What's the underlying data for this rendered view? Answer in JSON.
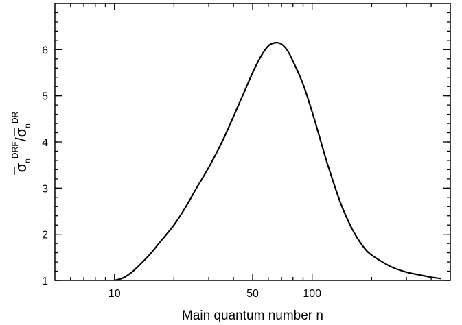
{
  "chart_data": {
    "type": "line",
    "xlabel": "Main quantum number n",
    "ylabel": {
      "sigma": "σ",
      "subscript": "n",
      "sup_numerator": "DRF",
      "slash": "/",
      "sup_denominator": "DR"
    },
    "x_scale": "log",
    "xlim": [
      5,
      500
    ],
    "ylim": [
      1,
      7
    ],
    "x_ticks": [
      10,
      50,
      100
    ],
    "x_tick_labels": [
      "10",
      "50",
      "100"
    ],
    "y_ticks": [
      1,
      2,
      3,
      4,
      5,
      6
    ],
    "y_tick_labels": [
      "1",
      "2",
      "3",
      "4",
      "5",
      "6"
    ],
    "grid": false,
    "series": [
      {
        "x": [
          10,
          11,
          12,
          13,
          15,
          17,
          20,
          23,
          26,
          30,
          35,
          40,
          45,
          50,
          55,
          60,
          65,
          70,
          75,
          80,
          90,
          100,
          110,
          120,
          140,
          160,
          180,
          200,
          250,
          300,
          350,
          400,
          450
        ],
        "y": [
          1.0,
          1.05,
          1.15,
          1.28,
          1.55,
          1.83,
          2.2,
          2.6,
          3.0,
          3.45,
          4.0,
          4.55,
          5.05,
          5.5,
          5.85,
          6.08,
          6.15,
          6.12,
          5.98,
          5.75,
          5.25,
          4.65,
          4.05,
          3.5,
          2.65,
          2.1,
          1.75,
          1.55,
          1.3,
          1.18,
          1.12,
          1.07,
          1.04
        ]
      }
    ]
  }
}
